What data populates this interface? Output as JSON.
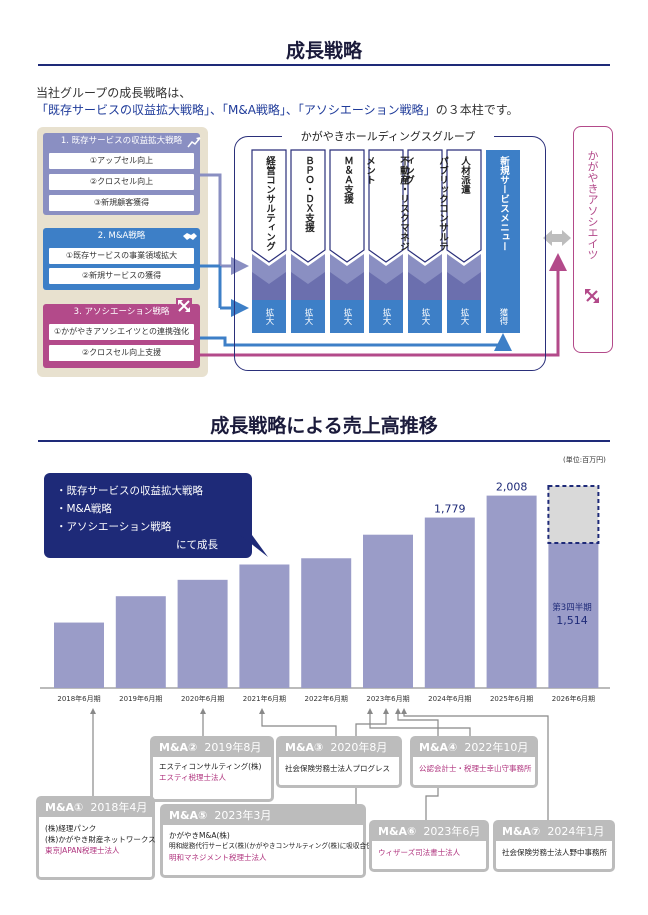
{
  "section1": {
    "title": "成長戦略",
    "intro_line1": "当社グループの成長戦略は、",
    "intro_line2_highlight": "「既存サービスの収益拡大戦略」、「M&A戦略」、「アソシエーション戦略」",
    "intro_line2_rest": "の３本柱です。",
    "strategies": [
      {
        "title": "1. 既存サービスの収益拡大戦略",
        "color": "#8a8fc2",
        "items": [
          "①アップセル向上",
          "②クロスセル向上",
          "③新規顧客獲得"
        ]
      },
      {
        "title": "2. M&A戦略",
        "color": "#3d7fc7",
        "items": [
          "①既存サービスの事業領域拡大",
          "②新規サービスの獲得"
        ]
      },
      {
        "title": "3. アソシエーション戦略",
        "color": "#b34a8a",
        "items": [
          "①かがやきアソシエイツとの連携強化",
          "②クロスセル向上支援"
        ]
      }
    ],
    "group_title": "かがやきホールディングスグループ",
    "services": [
      {
        "label": "経営コンサルティング",
        "bottom": "拡大"
      },
      {
        "label": "ＢＰＯ・ＤＸ支援",
        "bottom": "拡大"
      },
      {
        "label": "Ｍ＆Ａ支援",
        "bottom": "拡大"
      },
      {
        "label": "不動産・リスクマネジメント",
        "bottom": "拡大"
      },
      {
        "label": "パブリックコンサルティング",
        "bottom": "拡大"
      },
      {
        "label": "人材派遣",
        "bottom": "拡大"
      }
    ],
    "new_service": {
      "label": "新規サービスメニュー",
      "bottom": "獲得"
    },
    "associates": "かがやきアソシエイツ"
  },
  "section2": {
    "title": "成長戦略による売上高推移",
    "unit": "(単位:百万円)",
    "callout": [
      "・既存サービスの収益拡大戦略",
      "・M&A戦略",
      "・アソシエーション戦略",
      "にて成長"
    ],
    "forecast_label": "第3四半期",
    "forecast_value": "1,514"
  },
  "chart_data": {
    "type": "bar",
    "categories": [
      "2018年6月期",
      "2019年6月期",
      "2020年6月期",
      "2021年6月期",
      "2022年6月期",
      "2023年6月期",
      "2024年6月期",
      "2025年6月期",
      "2026年6月期"
    ],
    "values": [
      683,
      958,
      1129,
      1289,
      1354,
      1600,
      1779,
      2008,
      1514
    ],
    "data_labels": [
      "",
      "",
      "",
      "",
      "",
      "",
      "1,779",
      "2,008",
      ""
    ],
    "unit": "百万円",
    "color": "#9a9cc8",
    "forecast_color": "#d9d9d9",
    "ylim": [
      0,
      2150
    ]
  },
  "ma_deals": [
    {
      "label": "M&A①",
      "date": "2018年4月",
      "lines": [
        "(株)経理パンク",
        "(株)かがやき財産ネットワークス"
      ],
      "pink": [
        "東京JAPAN税理士法人"
      ]
    },
    {
      "label": "M&A②",
      "date": "2019年8月",
      "lines": [
        "エスティコンサルティング(株)"
      ],
      "pink": [
        "エスティ税理士法人"
      ]
    },
    {
      "label": "M&A③",
      "date": "2020年8月",
      "lines": [
        "社会保険労務士法人プログレス"
      ],
      "pink": []
    },
    {
      "label": "M&A④",
      "date": "2022年10月",
      "lines": [],
      "pink": [
        "公認会計士・税理士幸山守事務所"
      ]
    },
    {
      "label": "M&A⑤",
      "date": "2023年3月",
      "lines": [
        "かがやきM&A(株)",
        "明和総務代行サービス(株)(かがやきコンサルティング(株)に吸収合併)"
      ],
      "pink": [
        "明和マネジメント税理士法人"
      ]
    },
    {
      "label": "M&A⑥",
      "date": "2023年6月",
      "lines": [],
      "pink": [
        "ウィザーズ司法書士法人"
      ]
    },
    {
      "label": "M&A⑦",
      "date": "2024年1月",
      "lines": [
        "社会保険労務士法人野中事務所"
      ],
      "pink": []
    }
  ]
}
